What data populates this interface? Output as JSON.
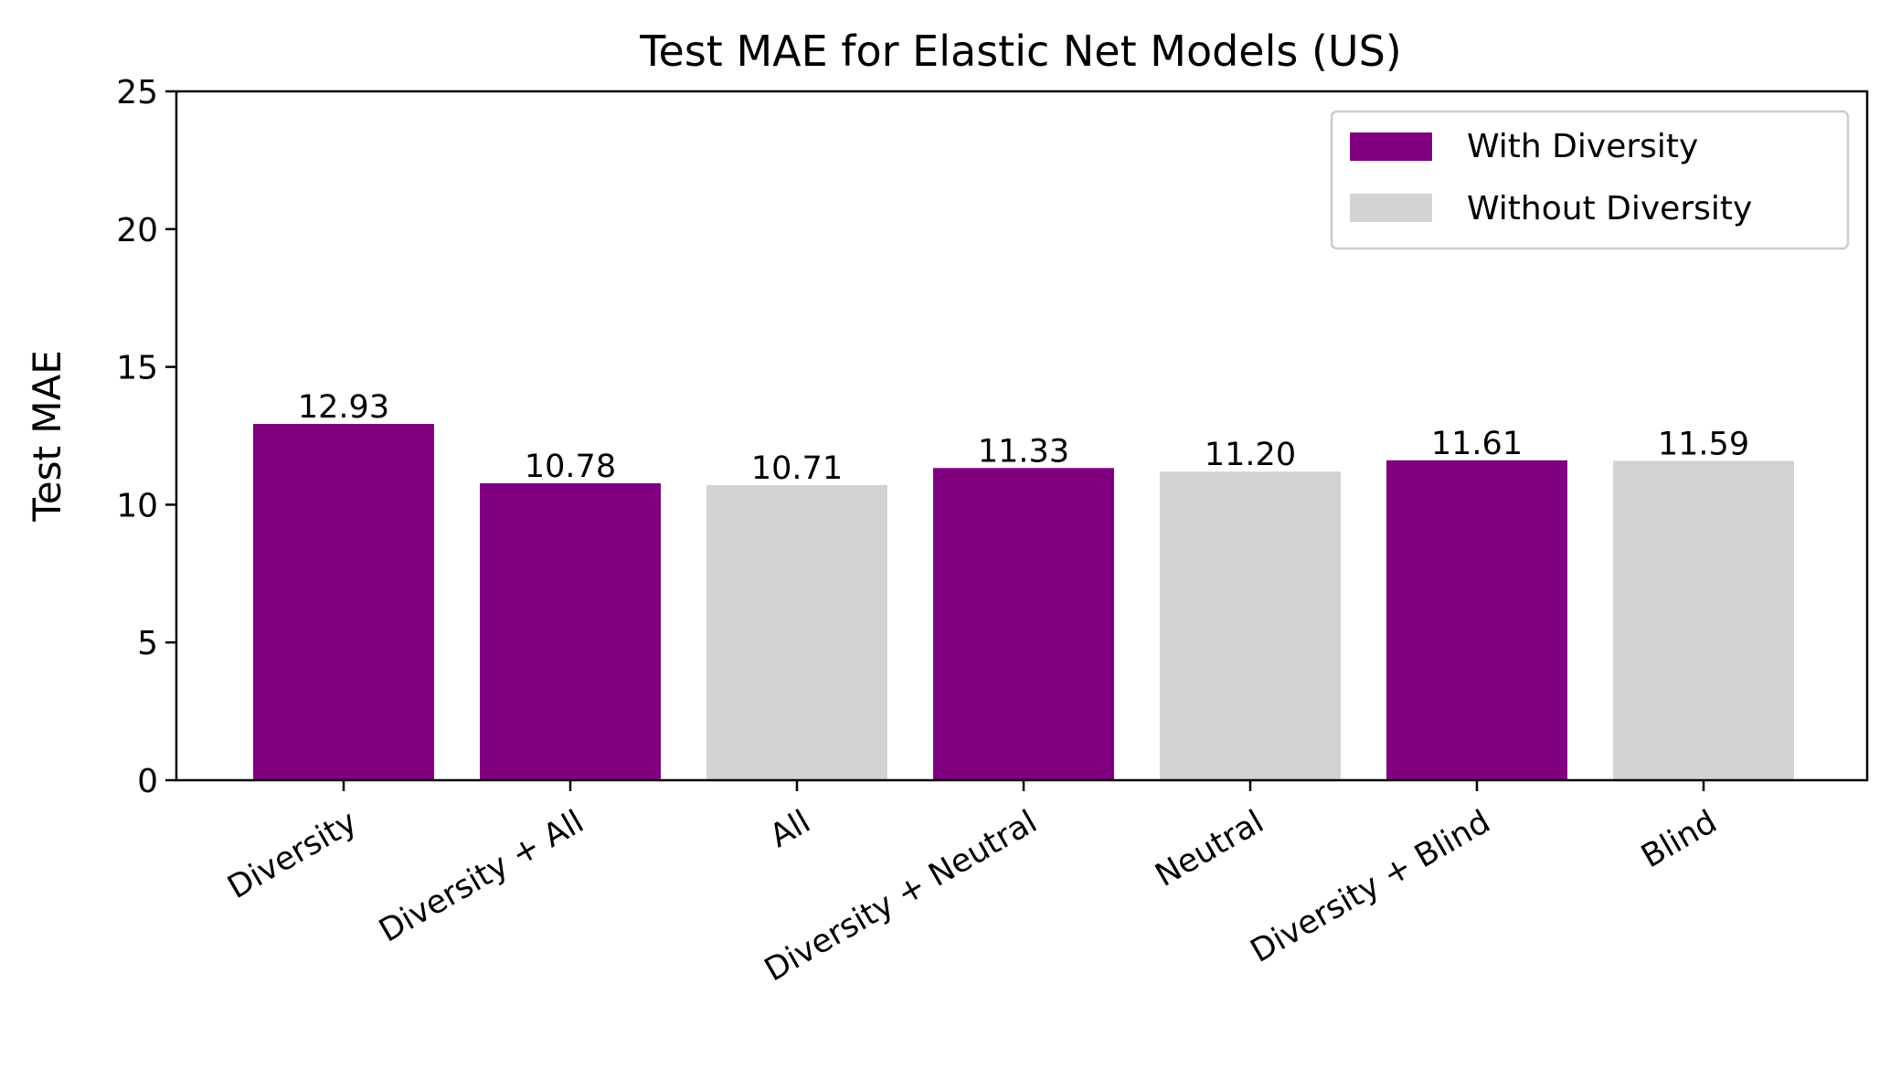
{
  "chart_data": {
    "type": "bar",
    "title": "Test MAE for Elastic Net Models (US)",
    "xlabel": "",
    "ylabel": "Test MAE",
    "ylim": [
      0,
      25
    ],
    "yticks": [
      0,
      5,
      10,
      15,
      20,
      25
    ],
    "grid": false,
    "legend_position": "top-right",
    "categories": [
      "Diversity",
      "Diversity + All",
      "All",
      "Diversity + Neutral",
      "Neutral",
      "Diversity + Blind",
      "Blind"
    ],
    "values": [
      12.93,
      10.78,
      10.71,
      11.33,
      11.2,
      11.61,
      11.59
    ],
    "value_labels": [
      "12.93",
      "10.78",
      "10.71",
      "11.33",
      "11.20",
      "11.61",
      "11.59"
    ],
    "groups": [
      "with",
      "with",
      "without",
      "with",
      "without",
      "with",
      "without"
    ],
    "legend": [
      {
        "key": "with",
        "label": "With Diversity",
        "color": "#800080"
      },
      {
        "key": "without",
        "label": "Without Diversity",
        "color": "#d3d3d3"
      }
    ]
  }
}
